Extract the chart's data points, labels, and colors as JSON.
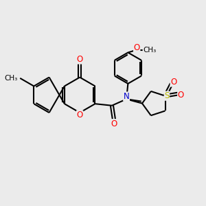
{
  "bg_color": "#ebebeb",
  "bond_color": "#000000",
  "bond_width": 1.5,
  "atom_colors": {
    "O": "#ff0000",
    "N": "#0000cc",
    "S": "#bbbb00",
    "C": "#000000"
  },
  "font_size": 8.5,
  "font_size_small": 7.5
}
